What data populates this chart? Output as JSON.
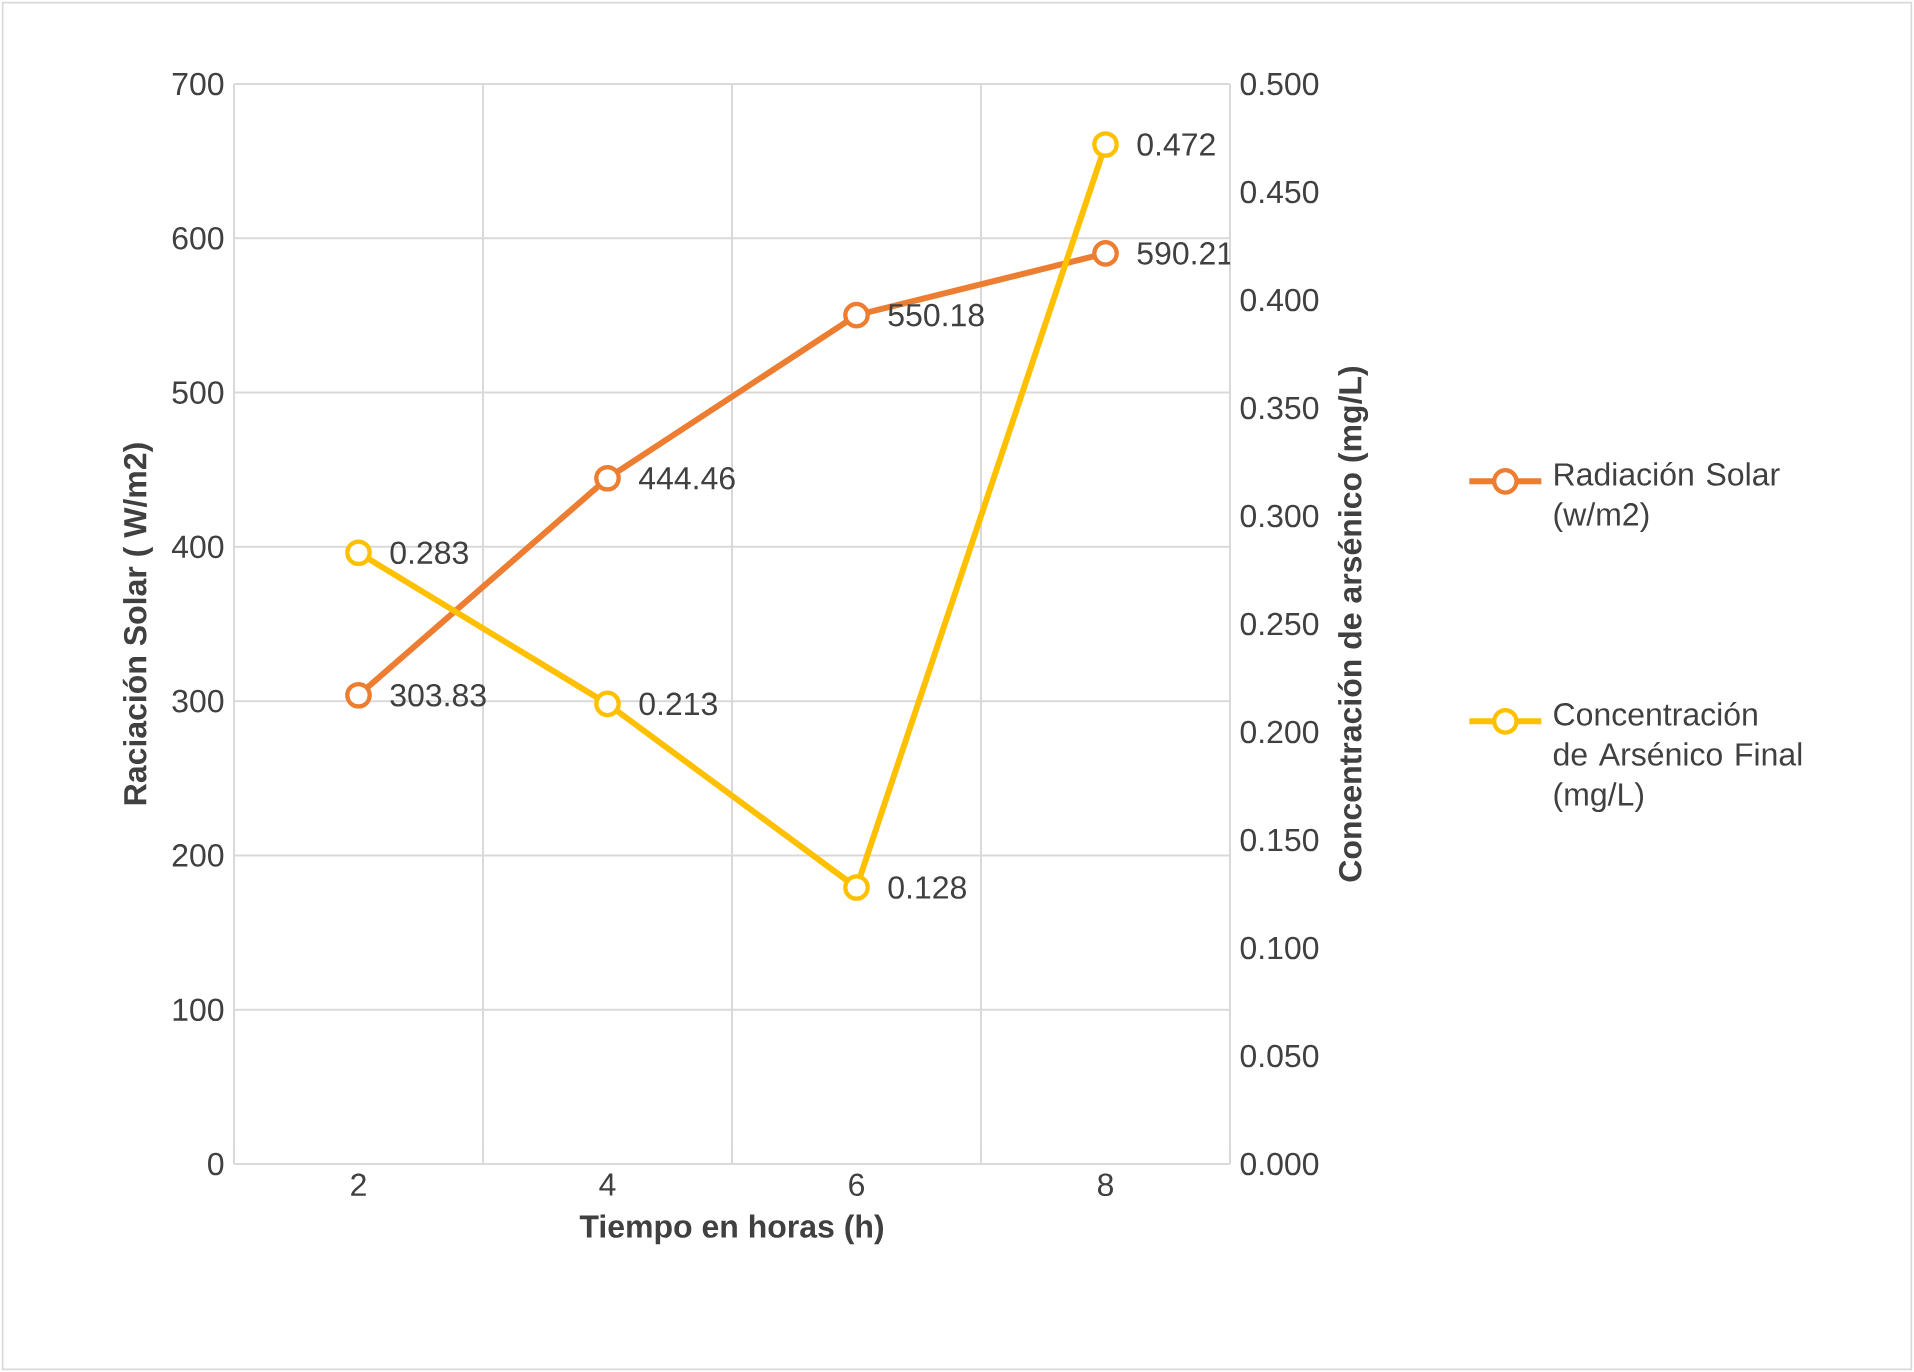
{
  "chart_data": {
    "type": "line",
    "xlabel": "Tiempo en horas (h)",
    "ylabel": "Raciación Solar ( W/m2)",
    "y2label": "Concentración de arsénico (mg/L)",
    "categories": [
      "2",
      "4",
      "6",
      "8"
    ],
    "series": [
      {
        "name": "Radiación Solar (w/m2)",
        "color": "#ed7d31",
        "values": [
          303.83,
          444.46,
          550.18,
          590.21
        ],
        "axis": "y"
      },
      {
        "name": "Concentración de Arsénico Final (mg/L)",
        "color": "#ffc000",
        "values": [
          0.283,
          0.213,
          0.128,
          0.472
        ],
        "axis": "y2"
      }
    ],
    "ylim": [
      0,
      700
    ],
    "yticks": [
      0,
      100,
      200,
      300,
      400,
      500,
      600,
      700
    ],
    "y2lim": [
      0,
      0.5
    ],
    "y2ticks": [
      {
        "value": 0,
        "label": "0.000"
      },
      {
        "value": 0.05,
        "label": "0.050"
      },
      {
        "value": 0.1,
        "label": "0.100"
      },
      {
        "value": 0.15,
        "label": "0.150"
      },
      {
        "value": 0.2,
        "label": "0.200"
      },
      {
        "value": 0.25,
        "label": "0.250"
      },
      {
        "value": 0.3,
        "label": "0.300"
      },
      {
        "value": 0.35,
        "label": "0.350"
      },
      {
        "value": 0.4,
        "label": "0.400"
      },
      {
        "value": 0.45,
        "label": "0.450"
      },
      {
        "value": 0.5,
        "label": "0.500"
      }
    ],
    "data_labels": true,
    "grid": true,
    "legend": "right",
    "marker": "circle",
    "line_style": "solid"
  }
}
